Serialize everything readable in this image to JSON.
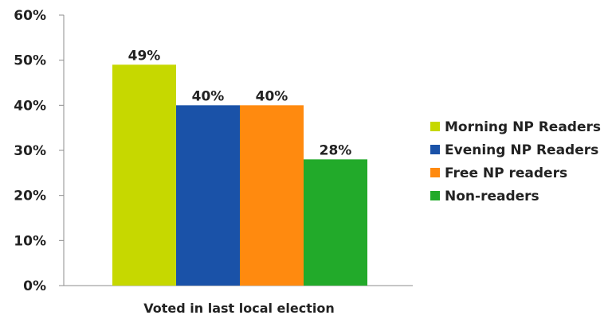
{
  "chart_data": {
    "type": "bar",
    "categories": [
      "Voted in last local election"
    ],
    "series": [
      {
        "name": "Morning NP Readers",
        "values": [
          49
        ],
        "label": "49%",
        "color": "#c6d800"
      },
      {
        "name": "Evening NP Readers",
        "values": [
          40
        ],
        "label": "40%",
        "color": "#1a52a8"
      },
      {
        "name": "Free NP readers",
        "values": [
          40
        ],
        "label": "40%",
        "color": "#ff8a0f"
      },
      {
        "name": "Non-readers",
        "values": [
          28
        ],
        "label": "28%",
        "color": "#22aa2a"
      }
    ],
    "yticks": [
      "0%",
      "10%",
      "20%",
      "30%",
      "40%",
      "50%",
      "60%"
    ],
    "ylim": [
      0,
      60
    ],
    "title": "",
    "xlabel": "Voted in last local election",
    "ylabel": "",
    "grid": false,
    "legend_position": "right"
  }
}
